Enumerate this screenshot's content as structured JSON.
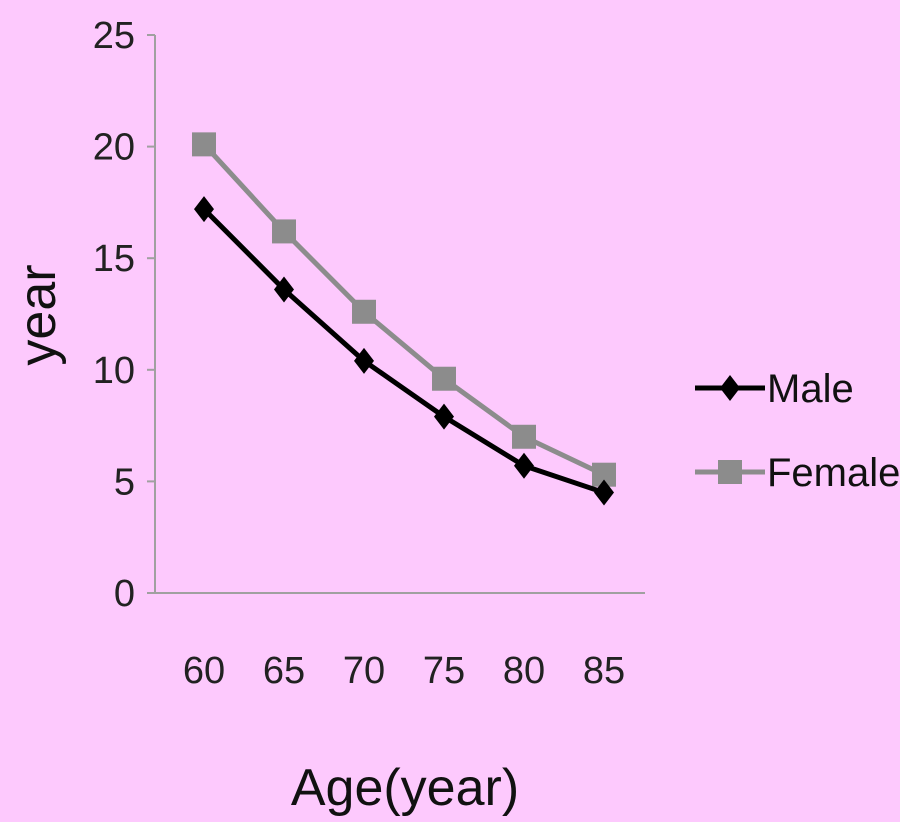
{
  "chart_data": {
    "type": "line",
    "title": "",
    "xlabel": "Age(year)",
    "ylabel": "year",
    "categories": [
      "60",
      "65",
      "70",
      "75",
      "80",
      "85"
    ],
    "ylim": [
      0,
      25
    ],
    "yticks": [
      "0",
      "5",
      "10",
      "15",
      "20",
      "25"
    ],
    "grid": false,
    "legend_position": "right",
    "series": [
      {
        "name": "Male",
        "values": [
          17.2,
          13.6,
          10.4,
          7.9,
          5.7,
          4.5
        ],
        "color": "#000000",
        "marker": "diamond"
      },
      {
        "name": "Female",
        "values": [
          20.1,
          16.2,
          12.6,
          9.6,
          7.0,
          5.3
        ],
        "color": "#8c8c8c",
        "marker": "square"
      }
    ]
  }
}
